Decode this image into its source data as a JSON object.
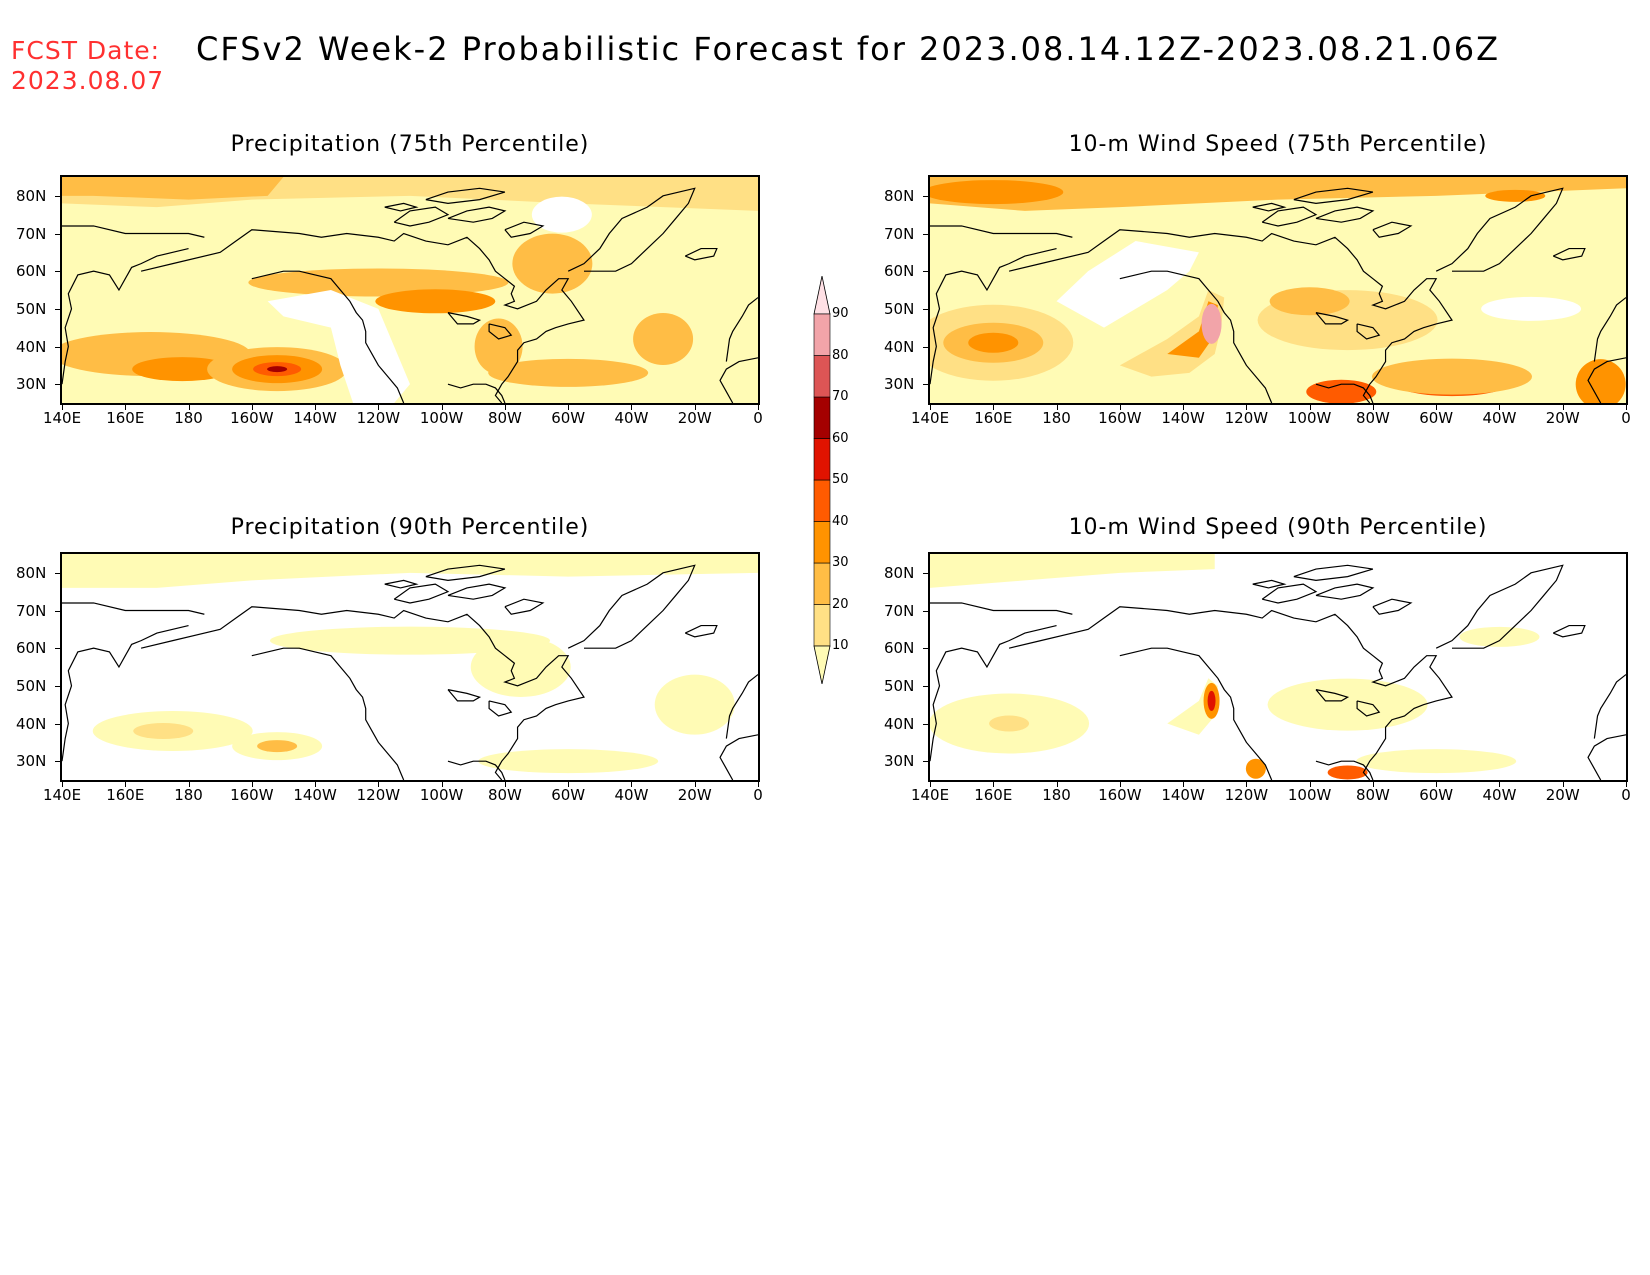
{
  "header": {
    "fcst_label": "FCST Date:",
    "fcst_date": "2023.08.07",
    "title": "CFSv2 Week-2 Probabilistic Forecast for 2023.08.14.12Z-2023.08.21.06Z"
  },
  "axes": {
    "lat_labels": [
      "80N",
      "70N",
      "60N",
      "50N",
      "40N",
      "30N"
    ],
    "lon_labels": [
      "140E",
      "160E",
      "180",
      "160W",
      "140W",
      "120W",
      "100W",
      "80W",
      "60W",
      "40W",
      "20W",
      "0"
    ]
  },
  "panels": [
    {
      "title": "Precipitation (75th Percentile)",
      "variable": "precip",
      "percentile": 75
    },
    {
      "title": "10-m Wind Speed (75th Percentile)",
      "variable": "wind",
      "percentile": 75
    },
    {
      "title": "Precipitation (90th Percentile)",
      "variable": "precip",
      "percentile": 90
    },
    {
      "title": "10-m Wind Speed (90th Percentile)",
      "variable": "wind",
      "percentile": 90
    }
  ],
  "colorbar": {
    "levels": [
      "10",
      "20",
      "30",
      "40",
      "50",
      "60",
      "70",
      "80",
      "90"
    ],
    "colors": [
      "#ffffff",
      "#fffbb5",
      "#ffe085",
      "#ffbd45",
      "#ff9300",
      "#ff5b00",
      "#e01300",
      "#a40000",
      "#dd5555",
      "#f2a4a9",
      "#ffe0e5"
    ]
  }
}
